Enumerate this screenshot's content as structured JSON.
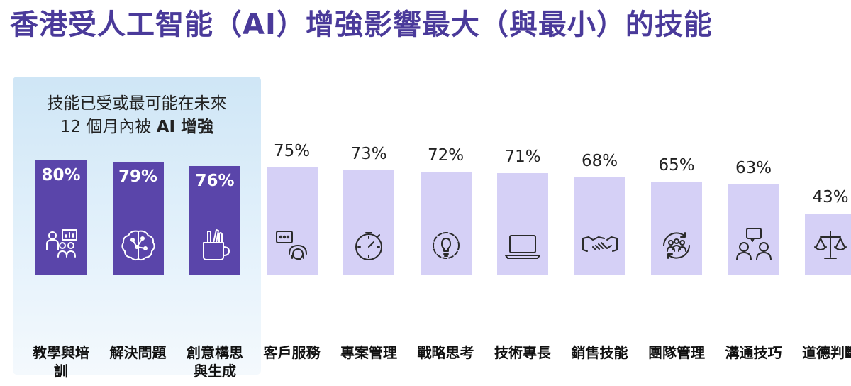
{
  "title": "香港受人工智能（AI）增強影響最大（與最小）的技能",
  "note": {
    "line1": "技能已受或最可能在未來",
    "line2_prefix": "12 個月內被 ",
    "line2_bold": "AI 增強"
  },
  "colors": {
    "title": "#4a3a9a",
    "bar_highlight": "#5a45aa",
    "bar_other": "#d5d0f6",
    "box": "#d7ebf8"
  },
  "chart_data": {
    "type": "bar",
    "categories": [
      "教學與培訓",
      "解決問題",
      "創意構思與生成",
      "客戶服務",
      "專案管理",
      "戰略思考",
      "技術專長",
      "銷售技能",
      "團隊管理",
      "溝通技巧",
      "道德判斷"
    ],
    "values": [
      80,
      79,
      76,
      75,
      73,
      72,
      71,
      68,
      65,
      63,
      43
    ],
    "value_labels": [
      "80%",
      "79%",
      "76%",
      "75%",
      "73%",
      "72%",
      "71%",
      "68%",
      "65%",
      "63%",
      "43%"
    ],
    "highlighted": [
      true,
      true,
      true,
      false,
      false,
      false,
      false,
      false,
      false,
      false,
      false
    ],
    "icons": [
      "teaching-icon",
      "brain-icon",
      "creative-tools-icon",
      "customer-service-icon",
      "stopwatch-icon",
      "gear-bulb-icon",
      "laptop-icon",
      "handshake-icon",
      "team-cycle-icon",
      "communication-icon",
      "scales-icon"
    ],
    "unit": "%",
    "ylim": [
      0,
      100
    ],
    "grid": false,
    "legend": "none"
  }
}
